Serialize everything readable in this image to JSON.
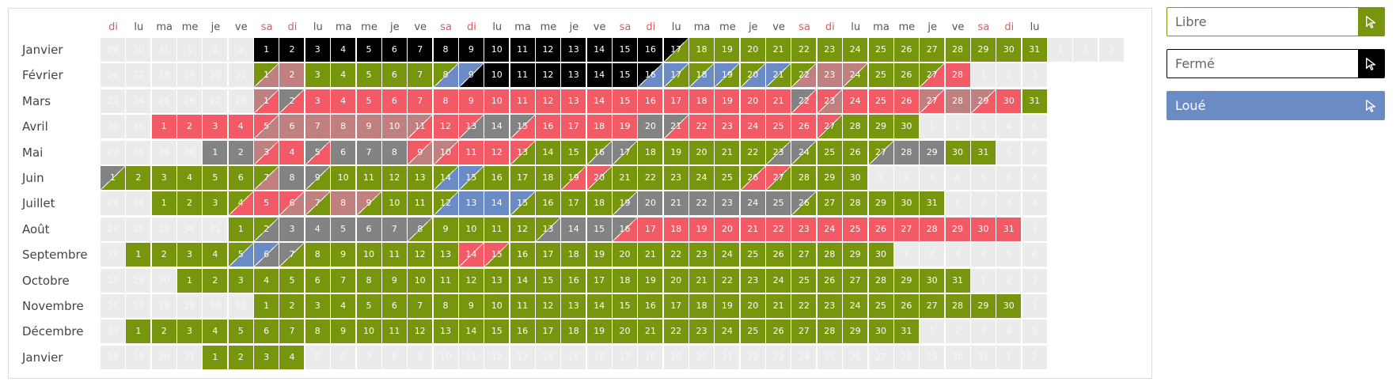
{
  "weekday_headers": [
    "di",
    "lu",
    "ma",
    "me",
    "je",
    "ve",
    "sa",
    "di",
    "lu",
    "ma",
    "me",
    "je",
    "ve",
    "sa",
    "di",
    "lu",
    "ma",
    "me",
    "je",
    "ve",
    "sa",
    "di",
    "lu",
    "ma",
    "me",
    "je",
    "ve",
    "sa",
    "di",
    "lu",
    "ma",
    "me",
    "je",
    "ve",
    "sa",
    "di",
    "lu"
  ],
  "weekend_color": "#e2595b",
  "status_colors": {
    "g": "#77950d",
    "b": "#000000",
    "r": "#f25a66",
    "bl": "#6b8bc5",
    "gy": "#838383",
    "pk": "#c08080",
    "pad": "#ebebec"
  },
  "legend": [
    {
      "label": "Libre",
      "status": "free",
      "border": "#77950d",
      "button_color": "#77950d",
      "icon": "cursor-arrow-icon"
    },
    {
      "label": "Fermé",
      "status": "closed",
      "border": "#000000",
      "button_color": "#000000",
      "icon": "cursor-arrow-icon"
    },
    {
      "label": "Loué",
      "status": "rented",
      "border": "#6b8bc5",
      "button_color": "#6b8bc5",
      "icon": "cursor-arrow-icon"
    }
  ],
  "months": [
    {
      "name": "Janvier",
      "pre": [
        29,
        30,
        31,
        1,
        2,
        3
      ],
      "days": 31,
      "post": [
        1,
        2,
        3
      ],
      "colors": "b b b b b b b b b b b b b b b b b:g g g g g g g g g g g g"
    },
    {
      "name": "Février",
      "pre": [
        26,
        27,
        28,
        29,
        30,
        31
      ],
      "days": 28,
      "post": [
        1,
        2,
        3
      ],
      "colors": "g:pk pk g g g g g g:bl bl:b b b b b b b b:bl bl:g g:bl bl:g g:bl bl:g g:pk pk pk:g g g g:r r r"
    },
    {
      "name": "Mars",
      "pre": [
        23,
        24,
        25,
        26,
        27,
        28
      ],
      "days": 31,
      "post": [],
      "colors": "pk:r gy:r r r r r r r r r r r r r r r r r r r r gy:r r:pk r r r pk:r pk pk:r r"
    },
    {
      "name": "Avril",
      "pre": [
        30,
        31
      ],
      "days": 30,
      "post": [
        1,
        2,
        3,
        4,
        5
      ],
      "colors": "r r r r r:pk pk pk pk pk pk pk:r r r:gy gy gy:r r r r r gy gy:r r r r r r r:g"
    },
    {
      "name": "Mai",
      "pre": [
        27,
        28,
        29,
        30
      ],
      "days": 31,
      "post": [
        1,
        2
      ],
      "colors": "gy gy pk:r r gy:r gy gy gy r:pk pk:r r r r:g g g g:gy gy:g g g g g g g:gy gy:g g g g:gy gy gy"
    },
    {
      "name": "Juin",
      "pre": [],
      "days": 30,
      "post": [
        1,
        2,
        3,
        4,
        5,
        6,
        7
      ],
      "colors": "gy:g g g g g g g:pk gy gy:g g g g g g:bl bl:g g g g g:r r:g g g g g g g:r r:g g"
    },
    {
      "name": "Juillet",
      "pre": [
        29,
        30
      ],
      "days": 31,
      "post": [
        1,
        2,
        3,
        4
      ],
      "colors": "g g g g:r r r:pk pk:g pk pk:g g g g:bl bl bl bl:g g g g g:gy gy gy gy gy gy gy gy:g g g g g g g"
    },
    {
      "name": "Août",
      "pre": [
        27,
        28,
        29,
        30,
        31
      ],
      "days": 31,
      "post": [
        1
      ],
      "colors": "g g:gy gy gy gy gy gy gy:g g g g g g:gy gy gy gy:r r r r r r r r r r r r r r r r r r:g"
    },
    {
      "name": "Septembre",
      "pre": [
        31
      ],
      "days": 30,
      "post": [
        1,
        2,
        3,
        4,
        5,
        6
      ],
      "colors": "g g g g g:bl bl:gy gy:g g g g g g g r:r r:g g g g g g g g g g g g g g g g g g"
    },
    {
      "name": "Octobre",
      "pre": [
        28,
        29,
        30
      ],
      "days": 31,
      "post": [
        1,
        2,
        3
      ],
      "colors": "g g g g g g g g g g g g g g g g g g g g g g g g g g g g g g g"
    },
    {
      "name": "Novembre",
      "pre": [
        26,
        27,
        28,
        29,
        30,
        31
      ],
      "days": 30,
      "post": [
        1
      ],
      "colors": "g g g g g g g g g g g g g g g g g g g g g g g g g g g g g g"
    },
    {
      "name": "Décembre",
      "pre": [
        30
      ],
      "days": 31,
      "post": [
        1,
        2,
        3,
        4,
        5
      ],
      "colors": "g g g g g g g g g g g g g g g g g g g g g g g g g g g g g g g"
    },
    {
      "name": "Janvier",
      "pre": [
        28,
        29,
        30,
        31
      ],
      "days": 4,
      "post": [
        5,
        6,
        7,
        8,
        9,
        10,
        11,
        12,
        13,
        14,
        15,
        16,
        17,
        18,
        19,
        20,
        21,
        22,
        23,
        24,
        25,
        26,
        27,
        28,
        29,
        30,
        31,
        1,
        2
      ],
      "colors": "g g g g"
    }
  ]
}
